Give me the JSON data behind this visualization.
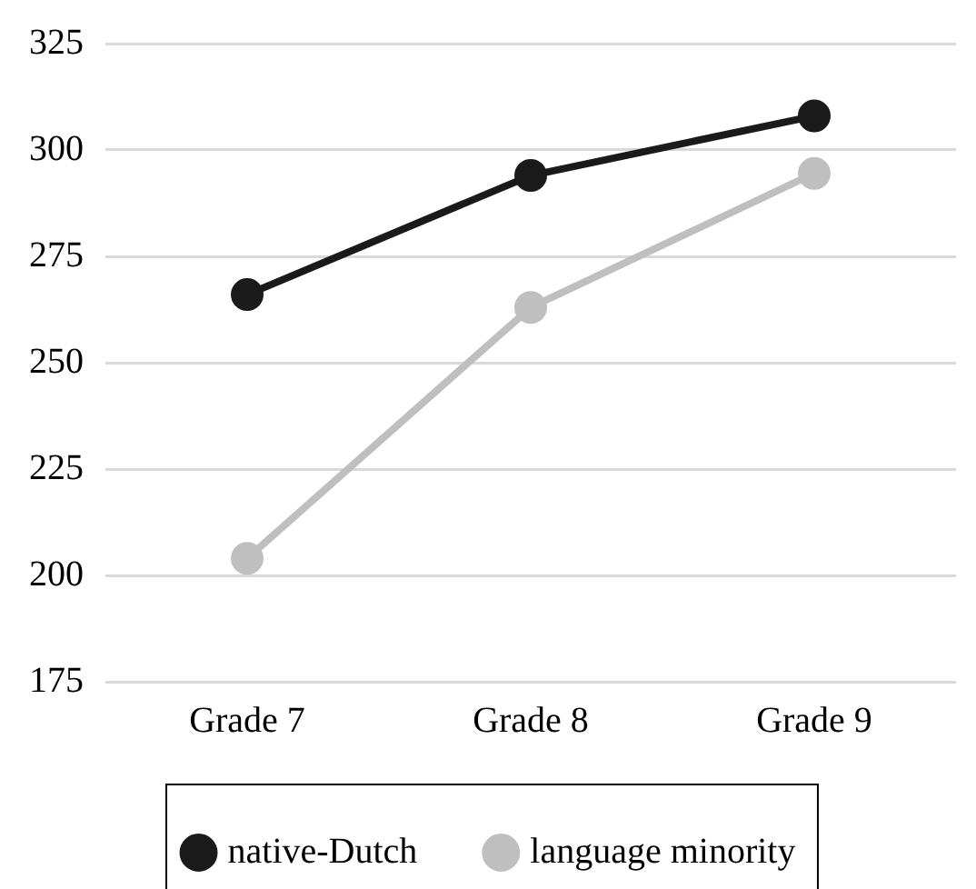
{
  "chart_data": {
    "type": "line",
    "categories": [
      "Grade 7",
      "Grade 8",
      "Grade 9"
    ],
    "series": [
      {
        "name": "native-Dutch",
        "color": "#1a1a1a",
        "values": [
          266,
          294,
          308
        ]
      },
      {
        "name": "language minority",
        "color": "#bfbfbf",
        "values": [
          204,
          263,
          294.5
        ]
      }
    ],
    "ylim": [
      175,
      325
    ],
    "yticks": [
      175,
      200,
      225,
      250,
      275,
      300,
      325
    ],
    "grid": "y",
    "legend": "bottom",
    "marker": "circle",
    "line_style": "solid"
  }
}
